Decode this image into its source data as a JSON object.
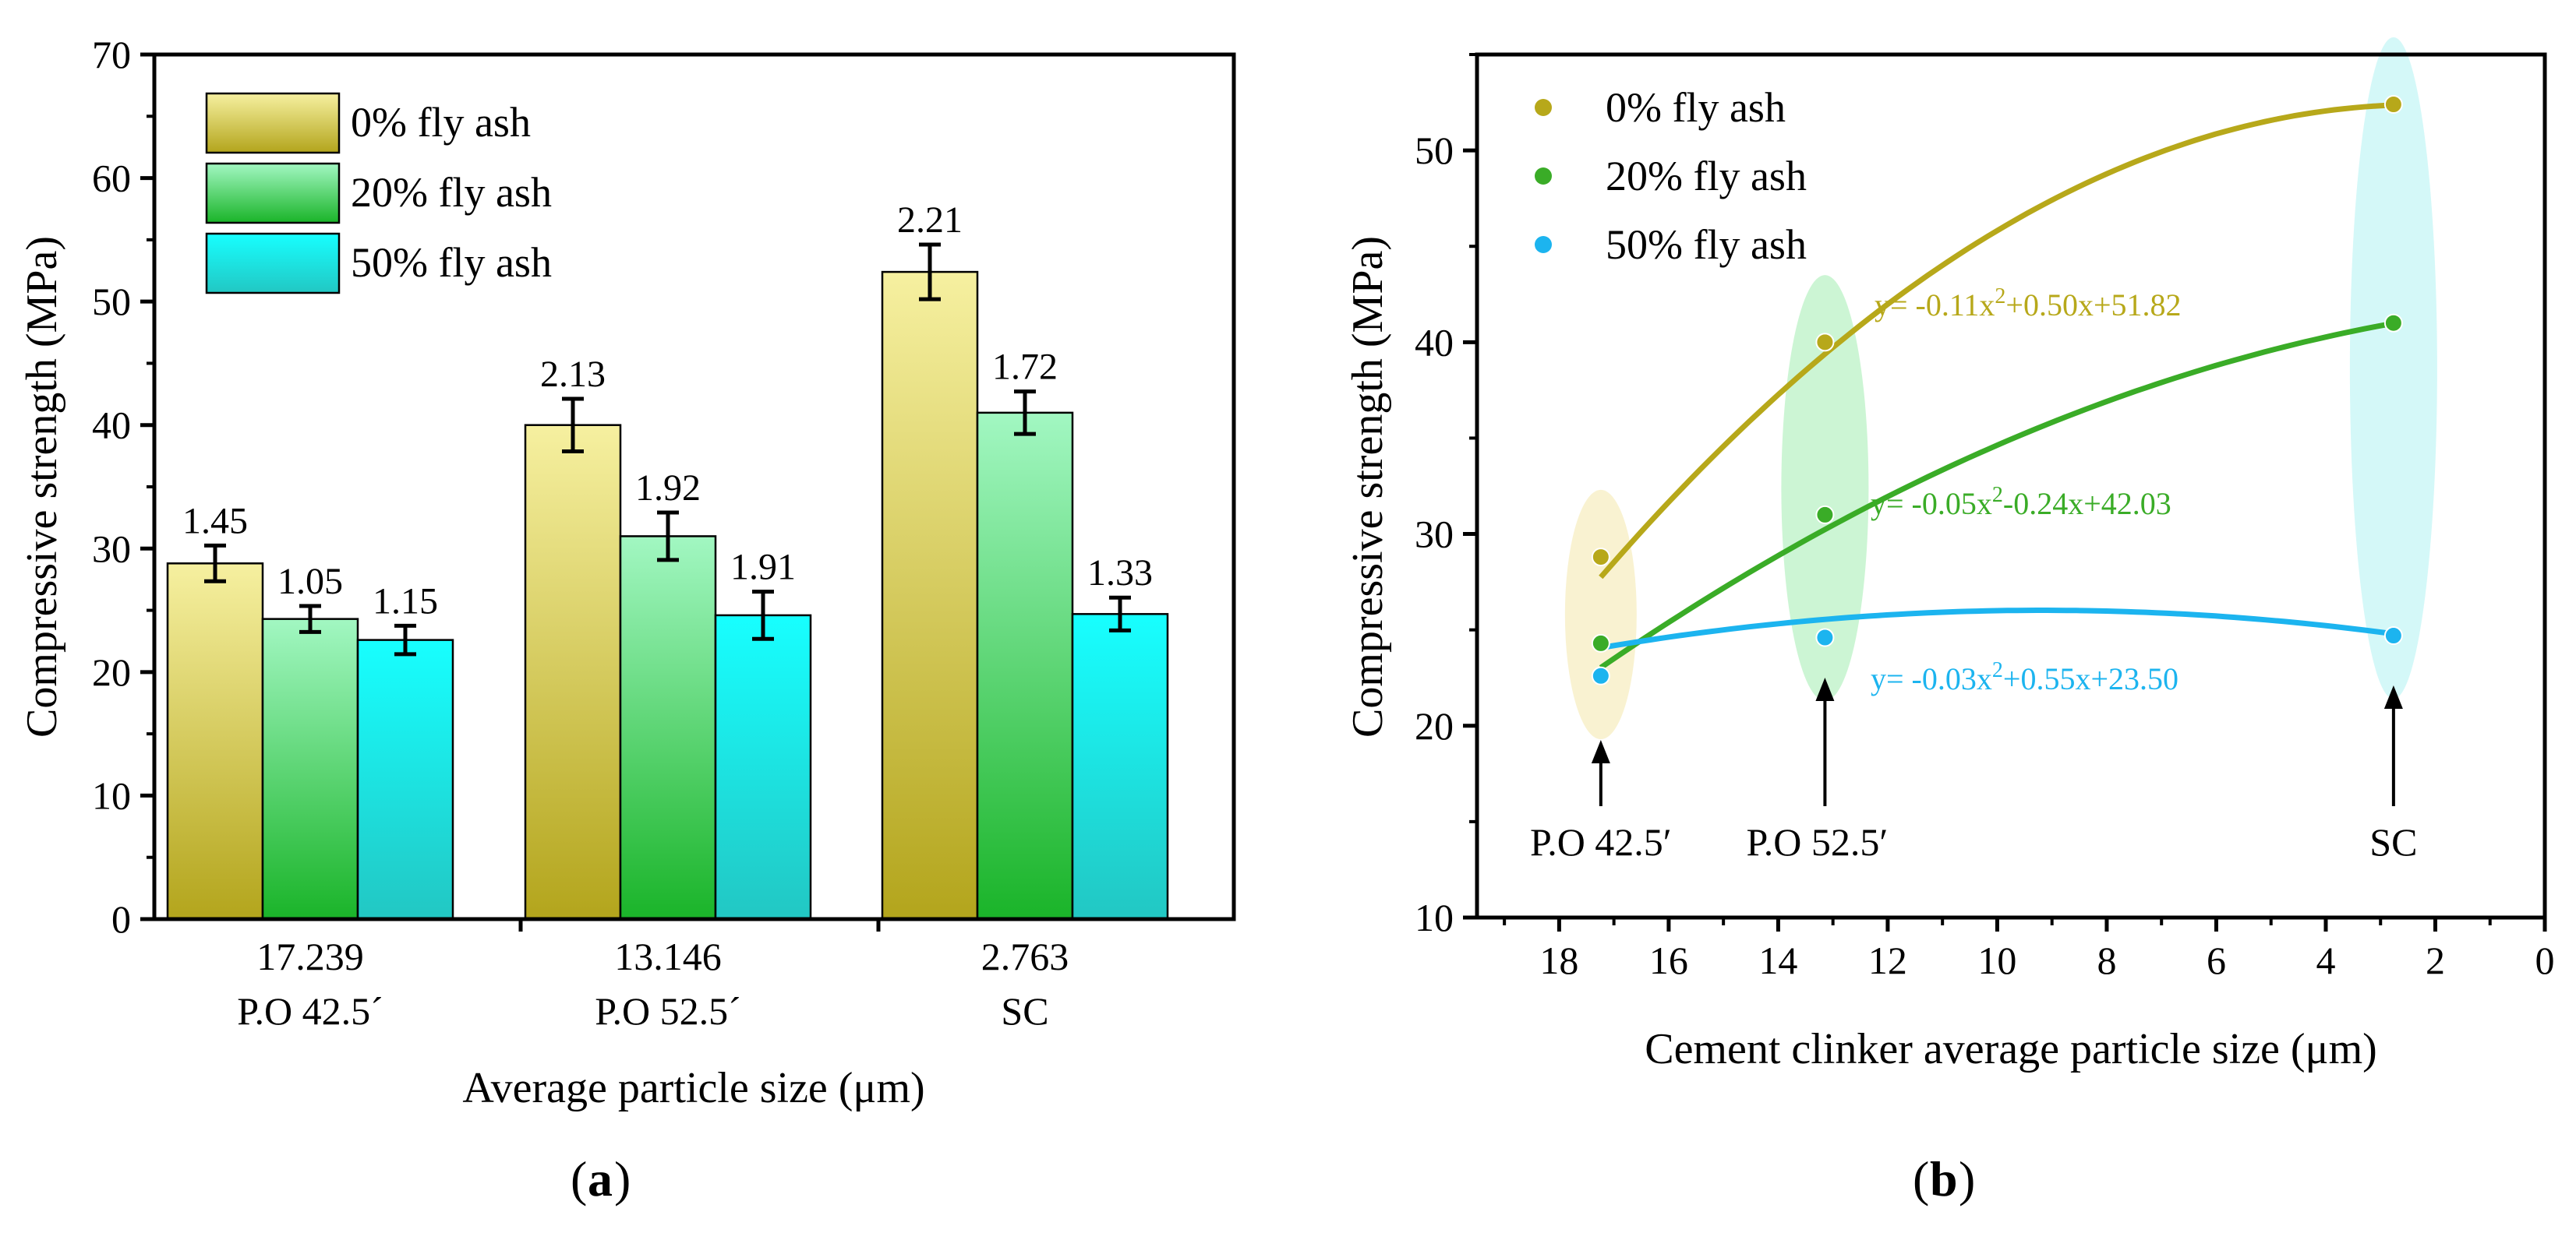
{
  "figure": {
    "panel_a_label": "a",
    "panel_b_label": "b"
  },
  "colors": {
    "fa0": "#b7a81a",
    "fa20": "#3aac27",
    "fa50": "#1cb4ef",
    "bar0_top": "#f6f0a0",
    "bar0_bottom": "#b3a51c",
    "bar20_top": "#a2f7c2",
    "bar20_bottom": "#1ab429",
    "bar50_top": "#17ffff",
    "bar50_bottom": "#22c7c3"
  },
  "chart_data": [
    {
      "type": "bar",
      "panel": "a",
      "title": "",
      "xlabel": "Average particle size (μm)",
      "ylabel": "Compressive strength (MPa)",
      "ylim": [
        0,
        70
      ],
      "yticks": [
        "0",
        "10",
        "20",
        "30",
        "40",
        "50",
        "60",
        "70"
      ],
      "categories": [
        {
          "size": "17.239",
          "name": "P.O 42.5´"
        },
        {
          "size": "13.146",
          "name": "P.O 52.5´"
        },
        {
          "size": "2.763",
          "name": "SC"
        }
      ],
      "legend": [
        "0% fly ash",
        "20% fly ash",
        "50% fly ash"
      ],
      "legend_position": "top-left",
      "series": [
        {
          "name": "0% fly ash",
          "values": [
            28.8,
            40.0,
            52.4
          ],
          "errors": [
            1.45,
            2.13,
            2.21
          ],
          "labels": [
            "1.45",
            "2.13",
            "2.21"
          ]
        },
        {
          "name": "20% fly ash",
          "values": [
            24.3,
            31.0,
            41.0
          ],
          "errors": [
            1.05,
            1.92,
            1.72
          ],
          "labels": [
            "1.05",
            "1.92",
            "1.72"
          ]
        },
        {
          "name": "50% fly ash",
          "values": [
            22.6,
            24.6,
            24.7
          ],
          "errors": [
            1.15,
            1.91,
            1.33
          ],
          "labels": [
            "1.15",
            "1.91",
            "1.33"
          ]
        }
      ]
    },
    {
      "type": "scatter",
      "panel": "b",
      "title": "",
      "xlabel": "Cement clinker average particle size (μm)",
      "ylabel": "Compressive strength (MPa)",
      "xlim": [
        19.5,
        0
      ],
      "ylim": [
        10,
        55
      ],
      "xticks": [
        "18",
        "16",
        "14",
        "12",
        "10",
        "8",
        "6",
        "4",
        "2",
        "0"
      ],
      "yticks": [
        "10",
        "20",
        "30",
        "40",
        "50"
      ],
      "legend": [
        "0% fly ash",
        "20% fly ash",
        "50% fly ash"
      ],
      "legend_position": "top-left",
      "x": [
        17.239,
        13.146,
        2.763
      ],
      "series": [
        {
          "name": "0% fly ash",
          "y": [
            28.8,
            40.0,
            52.4
          ],
          "fit": {
            "a": -0.11,
            "b": 0.5,
            "c": 51.82
          }
        },
        {
          "name": "20% fly ash",
          "y": [
            24.3,
            31.0,
            41.0
          ],
          "fit": {
            "a": -0.05,
            "b": -0.24,
            "c": 42.03
          }
        },
        {
          "name": "50% fly ash",
          "y": [
            22.6,
            24.6,
            24.7
          ],
          "fit": {
            "a": -0.03,
            "b": 0.55,
            "c": 23.5
          }
        }
      ],
      "equations": [
        {
          "pre": "y= -0.11x",
          "sup": "2",
          "post": "+0.50x+51.82"
        },
        {
          "pre": "y= -0.05x",
          "sup": "2",
          "post": "-0.24x+42.03"
        },
        {
          "pre": "y= -0.03x",
          "sup": "2",
          "post": "+0.55x+23.50"
        }
      ],
      "annotations": [
        "P.O 42.5′",
        "P.O 52.5′",
        "SC"
      ]
    }
  ]
}
